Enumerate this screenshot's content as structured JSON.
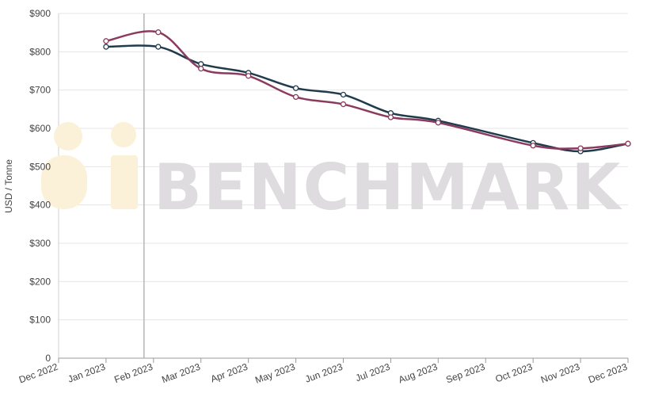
{
  "watermark": {
    "text": "BENCHMARK"
  },
  "chart_data": {
    "type": "line",
    "title": "",
    "xlabel": "",
    "ylabel": "USD / Tonne",
    "ylim": [
      0,
      900
    ],
    "y_ticks": [
      {
        "value": 0,
        "label": "0"
      },
      {
        "value": 100,
        "label": "$100"
      },
      {
        "value": 200,
        "label": "$200"
      },
      {
        "value": 300,
        "label": "$300"
      },
      {
        "value": 400,
        "label": "$400"
      },
      {
        "value": 500,
        "label": "$500"
      },
      {
        "value": 600,
        "label": "$600"
      },
      {
        "value": 700,
        "label": "$700"
      },
      {
        "value": 800,
        "label": "$800"
      },
      {
        "value": 900,
        "label": "$900"
      }
    ],
    "categories": [
      "Dec 2022",
      "Jan 2023",
      "Feb 2023",
      "Mar 2023",
      "Apr 2023",
      "May 2023",
      "Jun 2023",
      "Jul 2023",
      "Aug 2023",
      "Sep 2023",
      "Oct 2023",
      "Nov 2023",
      "Dec 2023"
    ],
    "grid": true,
    "crosshair_x": 1.8,
    "series": [
      {
        "color": "#1f3b4d",
        "points": [
          [
            1.0,
            813
          ],
          [
            2.1,
            813
          ],
          [
            3.0,
            768
          ],
          [
            4.0,
            745
          ],
          [
            5.0,
            705
          ],
          [
            6.0,
            688
          ],
          [
            7.0,
            640
          ],
          [
            8.0,
            620
          ],
          [
            10.0,
            562
          ],
          [
            11.0,
            540
          ],
          [
            12.0,
            560
          ]
        ]
      },
      {
        "color": "#8a3b5e",
        "points": [
          [
            1.0,
            828
          ],
          [
            2.1,
            851
          ],
          [
            3.0,
            756
          ],
          [
            4.0,
            737
          ],
          [
            5.0,
            682
          ],
          [
            6.0,
            663
          ],
          [
            7.0,
            629
          ],
          [
            8.0,
            615
          ],
          [
            10.0,
            555
          ],
          [
            11.0,
            548
          ],
          [
            12.0,
            560
          ]
        ]
      }
    ]
  }
}
